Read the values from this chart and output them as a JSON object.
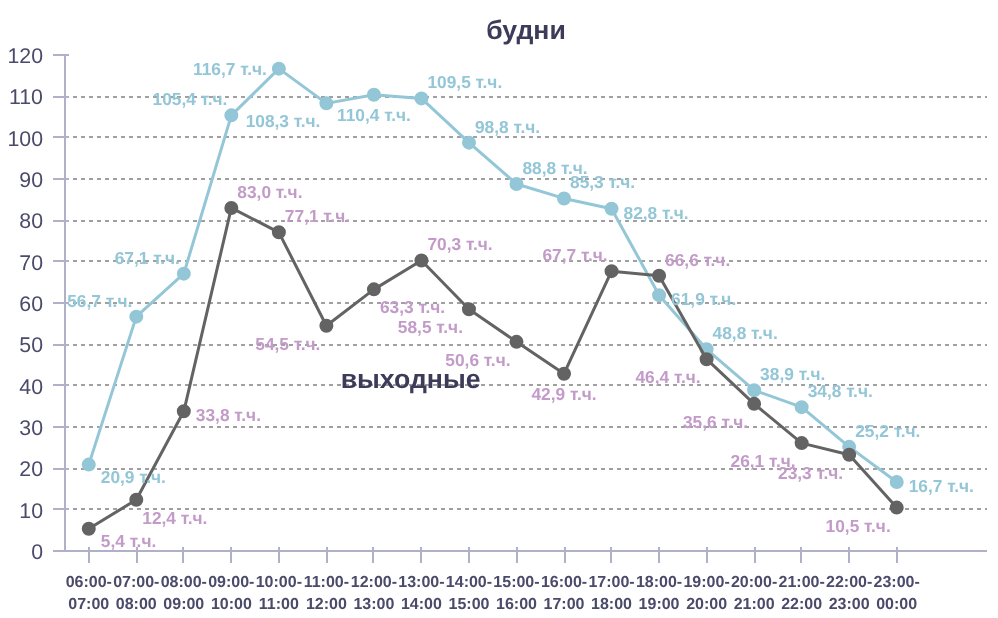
{
  "chart_data": {
    "type": "line",
    "categories": [
      "06:00-07:00",
      "07:00-08:00",
      "08:00-09:00",
      "09:00-10:00",
      "10:00-11:00",
      "11:00-12:00",
      "12:00-13:00",
      "13:00-14:00",
      "14:00-15:00",
      "15:00-16:00",
      "16:00-17:00",
      "17:00-18:00",
      "18:00-19:00",
      "19:00-20:00",
      "20:00-21:00",
      "21:00-22:00",
      "22:00-23:00",
      "23:00-00:00"
    ],
    "series": [
      {
        "name": "будни",
        "color": "#93c6d6",
        "values": [
          20.9,
          56.7,
          67.1,
          105.4,
          116.7,
          108.3,
          110.4,
          109.5,
          98.8,
          88.8,
          85.3,
          82.8,
          61.9,
          48.8,
          38.9,
          34.8,
          25.2,
          16.7
        ],
        "value_labels": [
          "20,9 т.ч.",
          "56,7 т.ч.",
          "67,1 т.ч.",
          "105,4 т.ч.",
          "116,7 т.ч.",
          "108,3 т.ч.",
          "110,4 т.ч.",
          "109,5 т.ч.",
          "98,8 т.ч.",
          "88,8 т.ч.",
          "85,3 т.ч.",
          "82,8 т.ч.",
          "61,9 т.ч.",
          "48,8 т.ч.",
          "38,9 т.ч.",
          "34,8 т.ч.",
          "25,2 т.ч.",
          "16,7 т.ч."
        ]
      },
      {
        "name": "выходные",
        "color": "#636363",
        "values": [
          5.4,
          12.4,
          33.8,
          83.0,
          77.1,
          54.5,
          63.3,
          70.3,
          58.5,
          50.6,
          42.9,
          67.7,
          66.6,
          46.4,
          35.6,
          26.1,
          23.3,
          10.5
        ],
        "value_labels": [
          "5,4 т.ч.",
          "12,4 т.ч.",
          "33,8 т.ч.",
          "83,0 т.ч.",
          "77,1 т.ч.",
          "54,5 т.ч.",
          "63,3 т.ч.",
          "70,3 т.ч.",
          "58,5 т.ч.",
          "50,6 т.ч.",
          "42,9 т.ч.",
          "67,7 т.ч.",
          "66,6 т.ч.",
          "46,4 т.ч.",
          "35,6 т.ч.",
          "26,1 т.ч.",
          "23,3 т.ч.",
          "10,5 т.ч."
        ]
      }
    ],
    "ylim": [
      0,
      120
    ],
    "yticks": [
      0,
      10,
      20,
      30,
      40,
      50,
      60,
      70,
      80,
      90,
      100,
      110,
      120
    ],
    "grid": "y",
    "marker": "circle",
    "line_style": "solid"
  }
}
